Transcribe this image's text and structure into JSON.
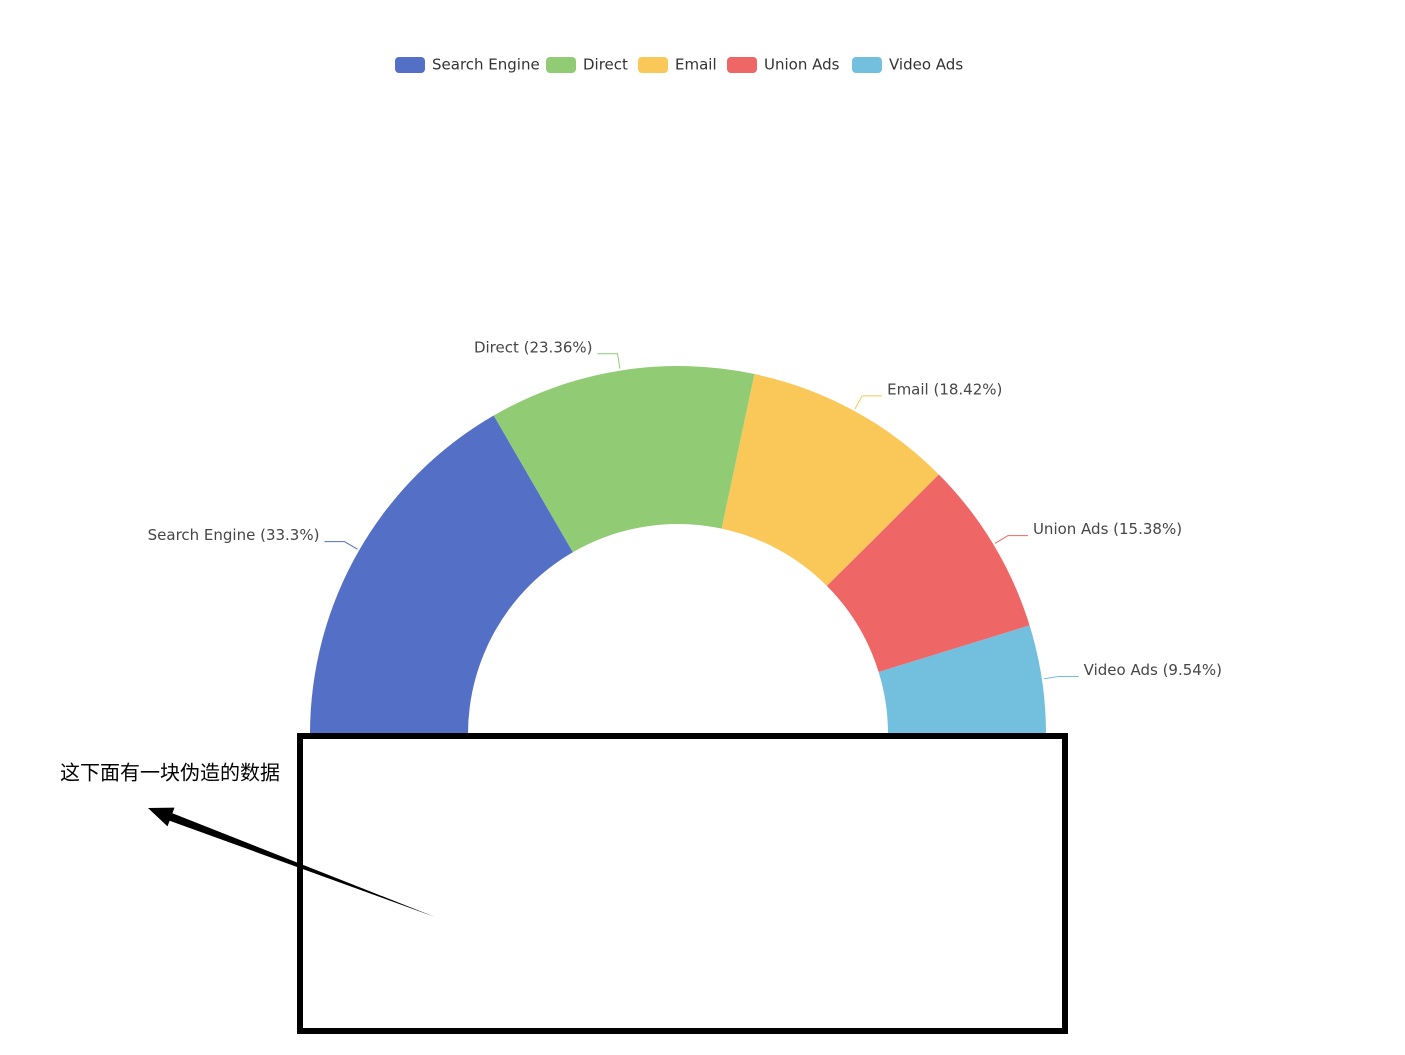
{
  "chart_data": {
    "type": "pie",
    "categories": [
      "Search Engine",
      "Direct",
      "Email",
      "Union Ads",
      "Video Ads"
    ],
    "values": [
      33.3,
      23.36,
      18.42,
      15.38,
      9.54
    ],
    "value_labels": [
      "Search Engine (33.3%)",
      "Direct (23.36%)",
      "Email (18.42%)",
      "Union Ads (15.38%)",
      "Video Ads (9.54%)"
    ],
    "colors": [
      "#5470c6",
      "#91cc75",
      "#fac858",
      "#ee6666",
      "#73c0de"
    ],
    "annotation": "这下面有一块伪造的数据"
  }
}
